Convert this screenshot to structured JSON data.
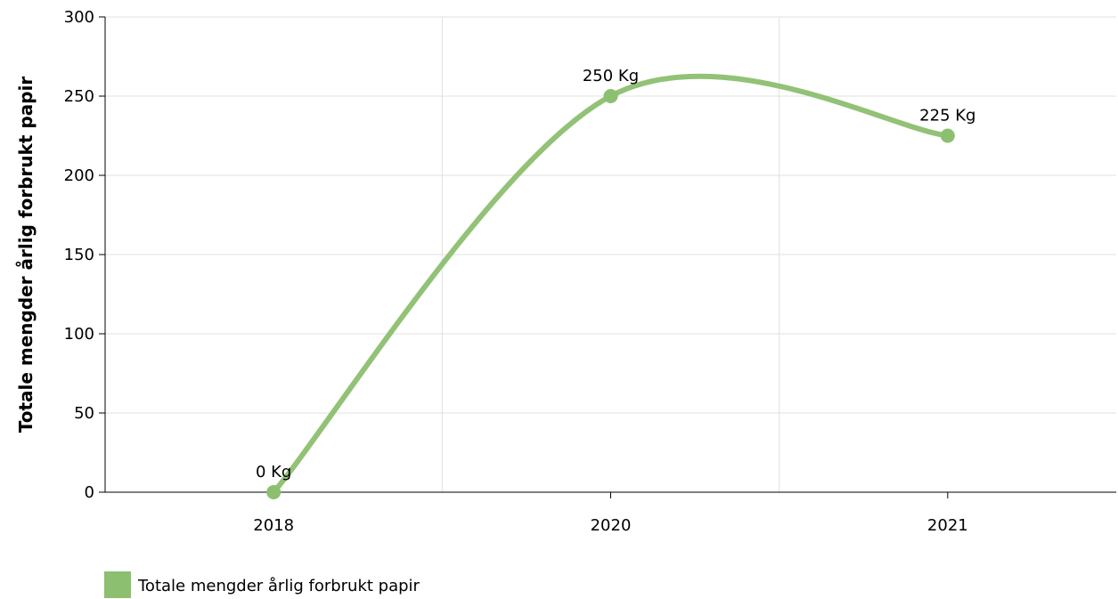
{
  "chart_data": {
    "type": "line",
    "categories": [
      "2018",
      "2020",
      "2021"
    ],
    "series": [
      {
        "name": "Totale mengder årlig forbrukt papir",
        "values": [
          0,
          250,
          225
        ],
        "data_labels": [
          "0 Kg",
          "250 Kg",
          "225 Kg"
        ],
        "color": "#8cbf6f"
      }
    ],
    "ylabel": "Totale mengder årlig forbrukt papir",
    "xlabel": "",
    "ylim": [
      0,
      300
    ],
    "yticks": [
      0,
      50,
      100,
      150,
      200,
      250,
      300
    ],
    "grid": true,
    "smooth": true,
    "legend": "bottom-left"
  }
}
